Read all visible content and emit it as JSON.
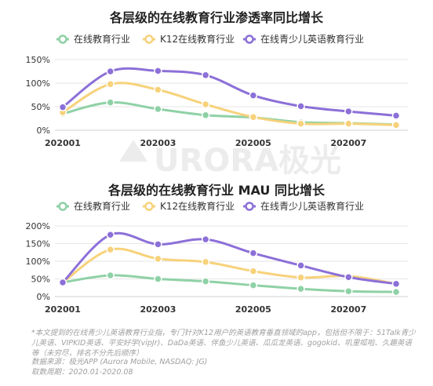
{
  "watermark": "URORA极光",
  "chart_data": [
    {
      "type": "line",
      "title": "各层级的在线教育行业渗透率同比增长",
      "categories": [
        "202001",
        "202002",
        "202003",
        "202004",
        "202005",
        "202006",
        "202007",
        "202008"
      ],
      "x_tick_labels": [
        "202001",
        "202003",
        "202005",
        "202007"
      ],
      "y_ticks": [
        "0%",
        "50%",
        "100%",
        "150%"
      ],
      "ylim": [
        0,
        150
      ],
      "grid": true,
      "legend_position": "top",
      "series": [
        {
          "name": "在线教育行业",
          "color": "#8fd1a6",
          "values": [
            35,
            59,
            45,
            32,
            27,
            17,
            15,
            12
          ]
        },
        {
          "name": "K12在线教育行业",
          "color": "#f7d27b",
          "values": [
            38,
            98,
            86,
            55,
            28,
            14,
            14,
            11
          ]
        },
        {
          "name": "在线青少儿英语教育行业",
          "color": "#8c70d8",
          "values": [
            49,
            125,
            126,
            117,
            74,
            51,
            40,
            31
          ]
        }
      ]
    },
    {
      "type": "line",
      "title": "各层级的在线教育行业 MAU 同比增长",
      "categories": [
        "202001",
        "202002",
        "202003",
        "202004",
        "202005",
        "202006",
        "202007",
        "202008"
      ],
      "x_tick_labels": [
        "202001",
        "202003",
        "202005",
        "202007"
      ],
      "y_ticks": [
        "0%",
        "50%",
        "100%",
        "150%",
        "200%"
      ],
      "ylim": [
        0,
        200
      ],
      "grid": true,
      "legend_position": "top",
      "series": [
        {
          "name": "在线教育行业",
          "color": "#8fd1a6",
          "values": [
            40,
            60,
            50,
            43,
            32,
            22,
            15,
            13
          ]
        },
        {
          "name": "K12在线教育行业",
          "color": "#f7d27b",
          "values": [
            40,
            133,
            107,
            98,
            72,
            54,
            58,
            36
          ]
        },
        {
          "name": "在线青少儿英语教育行业",
          "color": "#8c70d8",
          "values": [
            40,
            175,
            148,
            162,
            123,
            88,
            55,
            36
          ]
        }
      ]
    }
  ],
  "footnote": "*本文提到的在线青少儿英语教育行业指，专门针对K12用户的英语教育垂直领域的app，包括但不限于：51Talk青少儿英语、VIPKID英语、平安好学(vipJr)、DaDa英语、伴鱼少儿英语、瓜瓜龙英语、gogokid、叽里呱啦、久趣英语等（未穷尽，排名不分先后顺序）",
  "source": {
    "data_source": "数据来源：极光APP (Aurora Mobile, NASDAQ: JG)",
    "period": "取数周期：2020.01-2020.08"
  }
}
